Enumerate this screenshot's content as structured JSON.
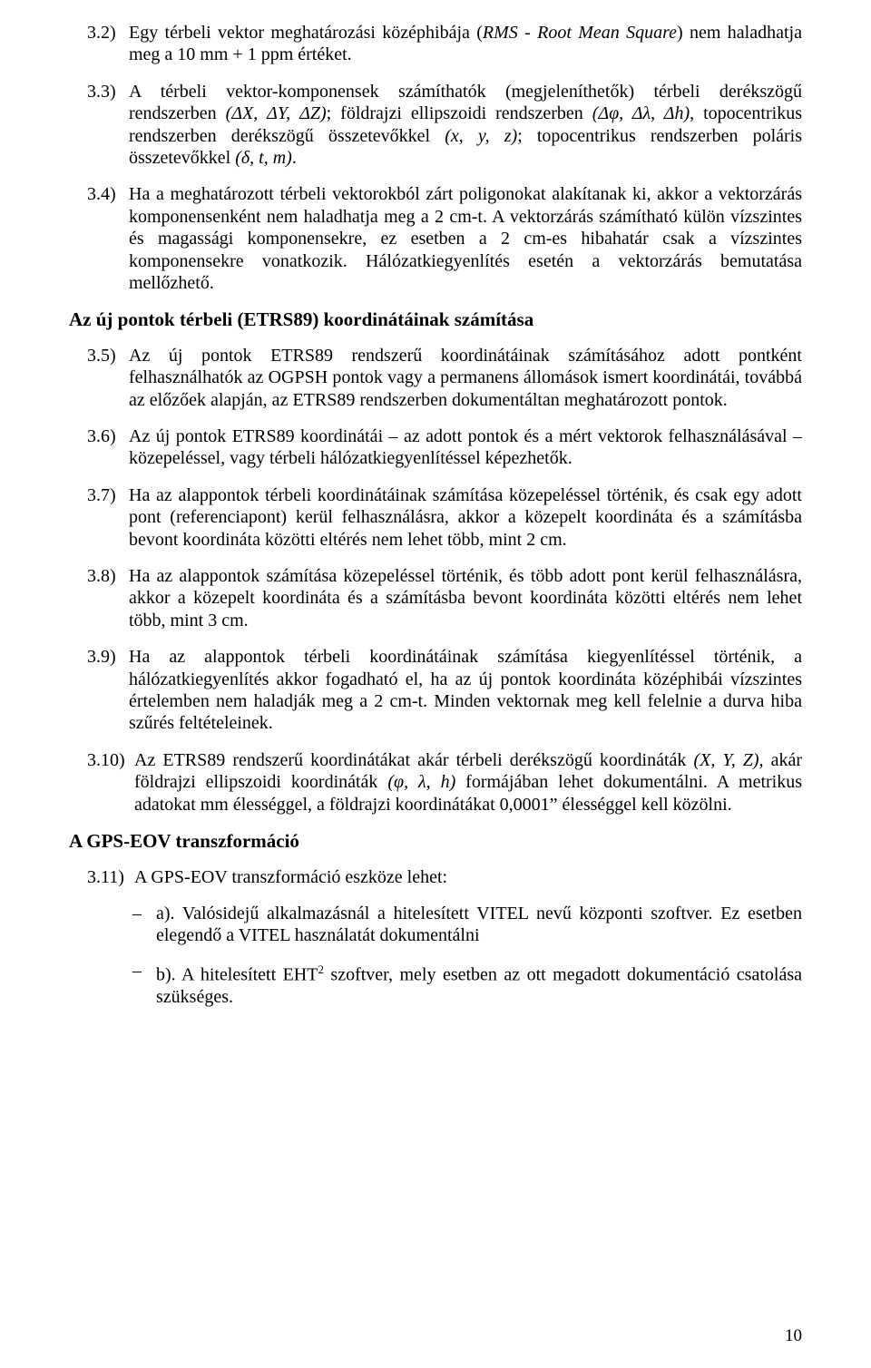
{
  "items": [
    {
      "num": "3.2)",
      "text": "Egy térbeli vektor meghatározási középhibája (<i>RMS - Root Mean Square</i>) nem haladhatja meg a 10 mm + 1 ppm értéket."
    },
    {
      "num": "3.3)",
      "text": "A térbeli vektor-komponensek számíthatók (megjeleníthetők) térbeli derékszögű rendszerben <i>(ΔX, ΔY, ΔZ)</i>; földrajzi ellipszoidi rendszerben <i>(Δφ, Δλ, Δh)</i>, topocentrikus rendszerben derékszögű összetevőkkel <i>(x, y, z)</i>; topocentrikus rendszerben poláris összetevőkkel <i>(δ, t, m)</i>."
    },
    {
      "num": "3.4)",
      "text": "Ha a meghatározott térbeli vektorokból zárt poligonokat alakítanak ki, akkor a vektorzárás komponensenként nem haladhatja meg a 2 cm-t. A vektorzárás számítható külön vízszintes és magassági komponensekre, ez esetben a 2 cm-es hibahatár csak a vízszintes komponensekre vonatkozik. Hálózatkiegyenlítés esetén a vektorzárás bemutatása mellőzhető."
    }
  ],
  "heading1": "Az új pontok térbeli (ETRS89) koordinátáinak számítása",
  "items2": [
    {
      "num": "3.5)",
      "text": "Az új pontok ETRS89 rendszerű koordinátáinak számításához adott pontként felhasználhatók az OGPSH pontok vagy a permanens állomások ismert koordinátái, továbbá az előzőek alapján, az ETRS89 rendszerben dokumentáltan meghatározott pontok."
    },
    {
      "num": "3.6)",
      "text": "Az új pontok ETRS89 koordinátái – az adott pontok és a mért vektorok felhasználásával – közepeléssel, vagy térbeli hálózatkiegyenlítéssel képezhetők."
    },
    {
      "num": "3.7)",
      "text": "Ha az alappontok térbeli koordinátáinak számítása közepeléssel történik, és csak egy adott pont (referenciapont) kerül felhasználásra, akkor a közepelt koordináta és a számításba bevont koordináta közötti eltérés nem lehet több, mint 2 cm."
    },
    {
      "num": "3.8)",
      "text": "Ha az alappontok számítása közepeléssel történik, és több adott pont kerül felhasználásra, akkor a közepelt koordináta és a számításba bevont koordináta közötti eltérés nem lehet több, mint 3 cm."
    },
    {
      "num": "3.9)",
      "text": "Ha az alappontok térbeli koordinátáinak számítása kiegyenlítéssel történik, a hálózatkiegyenlítés akkor fogadható el, ha az új pontok koordináta középhibái vízszintes értelemben nem haladják meg a 2 cm-t. Minden vektornak meg kell felelnie a durva hiba szűrés feltételeinek."
    },
    {
      "num": "3.10)",
      "text": "Az ETRS89 rendszerű koordinátákat akár térbeli derékszögű koordináták <i>(X, Y, Z)</i>, akár földrajzi ellipszoidi koordináták <i>(φ, λ, h)</i> formájában lehet dokumentálni.  A metrikus adatokat mm élességgel, a földrajzi koordinátákat 0,0001&#8221; élességgel kell közölni."
    }
  ],
  "heading2": "A GPS-EOV transzformáció",
  "items3": [
    {
      "num": "3.11)",
      "text": "A GPS-EOV transzformáció eszköze lehet:"
    }
  ],
  "subitems": [
    {
      "dash": "–",
      "text": "a). Valósidejű alkalmazásnál a hitelesített VITEL nevű központi szoftver. Ez esetben elegendő a VITEL használatát dokumentálni"
    },
    {
      "dash": "–",
      "text": "b). A hitelesített EHT<sup><span style=\"font-size:13px;\">2</span></sup> szoftver, mely esetben az ott megadott dokumentáció csatolása szükséges."
    }
  ],
  "pageNumber": "10"
}
